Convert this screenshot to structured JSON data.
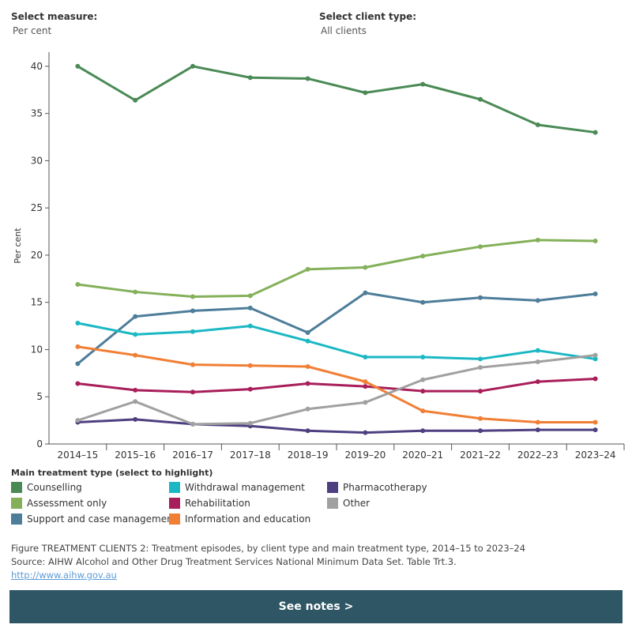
{
  "filters": {
    "measure": {
      "label": "Select measure:",
      "value": "Per cent"
    },
    "client_type": {
      "label": "Select client type:",
      "value": "All clients"
    }
  },
  "legend_title": "Main treatment type (select to highlight)",
  "caption": {
    "line1": "Figure TREATMENT CLIENTS 2: Treatment episodes, by client type and main treatment type, 2014–15 to 2023–24",
    "line2": "Source: AIHW Alcohol and Other Drug Treatment Services National Minimum Data Set. Table Trt.3.",
    "link": "http://www.aihw.gov.au"
  },
  "notes_button": "See notes >",
  "chart_data": {
    "type": "line",
    "title": "",
    "xlabel": "",
    "ylabel": "Per cent",
    "ylim": [
      0,
      42
    ],
    "yticks": [
      0,
      5,
      10,
      15,
      20,
      25,
      30,
      35,
      40
    ],
    "grid": false,
    "legend_position": "bottom",
    "categories": [
      "2014–15",
      "2015–16",
      "2016–17",
      "2017–18",
      "2018–19",
      "2019–20",
      "2020–21",
      "2021–22",
      "2022–23",
      "2023–24"
    ],
    "series": [
      {
        "name": "Counselling",
        "color": "#4a8a55",
        "values": [
          40.0,
          36.4,
          40.0,
          38.8,
          38.7,
          37.2,
          38.1,
          36.5,
          33.8,
          33.0
        ]
      },
      {
        "name": "Assessment only",
        "color": "#84b05a",
        "values": [
          16.9,
          16.1,
          15.6,
          15.7,
          18.5,
          18.7,
          19.9,
          20.9,
          21.6,
          21.5
        ]
      },
      {
        "name": "Support and case management",
        "color": "#4d7d99",
        "values": [
          8.5,
          13.5,
          14.1,
          14.4,
          11.8,
          16.0,
          15.0,
          15.5,
          15.2,
          15.9
        ]
      },
      {
        "name": "Withdrawal management",
        "color": "#1bb8c4",
        "values": [
          12.8,
          11.6,
          11.9,
          12.5,
          10.9,
          9.2,
          9.2,
          9.0,
          9.9,
          9.0
        ]
      },
      {
        "name": "Rehabilitation",
        "color": "#a81e5a",
        "values": [
          6.4,
          5.7,
          5.5,
          5.8,
          6.4,
          6.1,
          5.6,
          5.6,
          6.6,
          6.9
        ]
      },
      {
        "name": "Information and education",
        "color": "#f07f35",
        "values": [
          10.3,
          9.4,
          8.4,
          8.3,
          8.2,
          6.6,
          3.5,
          2.7,
          2.3,
          2.3
        ]
      },
      {
        "name": "Pharmacotherapy",
        "color": "#4e4080",
        "values": [
          2.3,
          2.6,
          2.1,
          1.9,
          1.4,
          1.2,
          1.4,
          1.4,
          1.5,
          1.5
        ]
      },
      {
        "name": "Other",
        "color": "#a0a0a0",
        "values": [
          2.5,
          4.5,
          2.1,
          2.2,
          3.7,
          4.4,
          6.8,
          8.1,
          8.7,
          9.4
        ]
      }
    ]
  }
}
